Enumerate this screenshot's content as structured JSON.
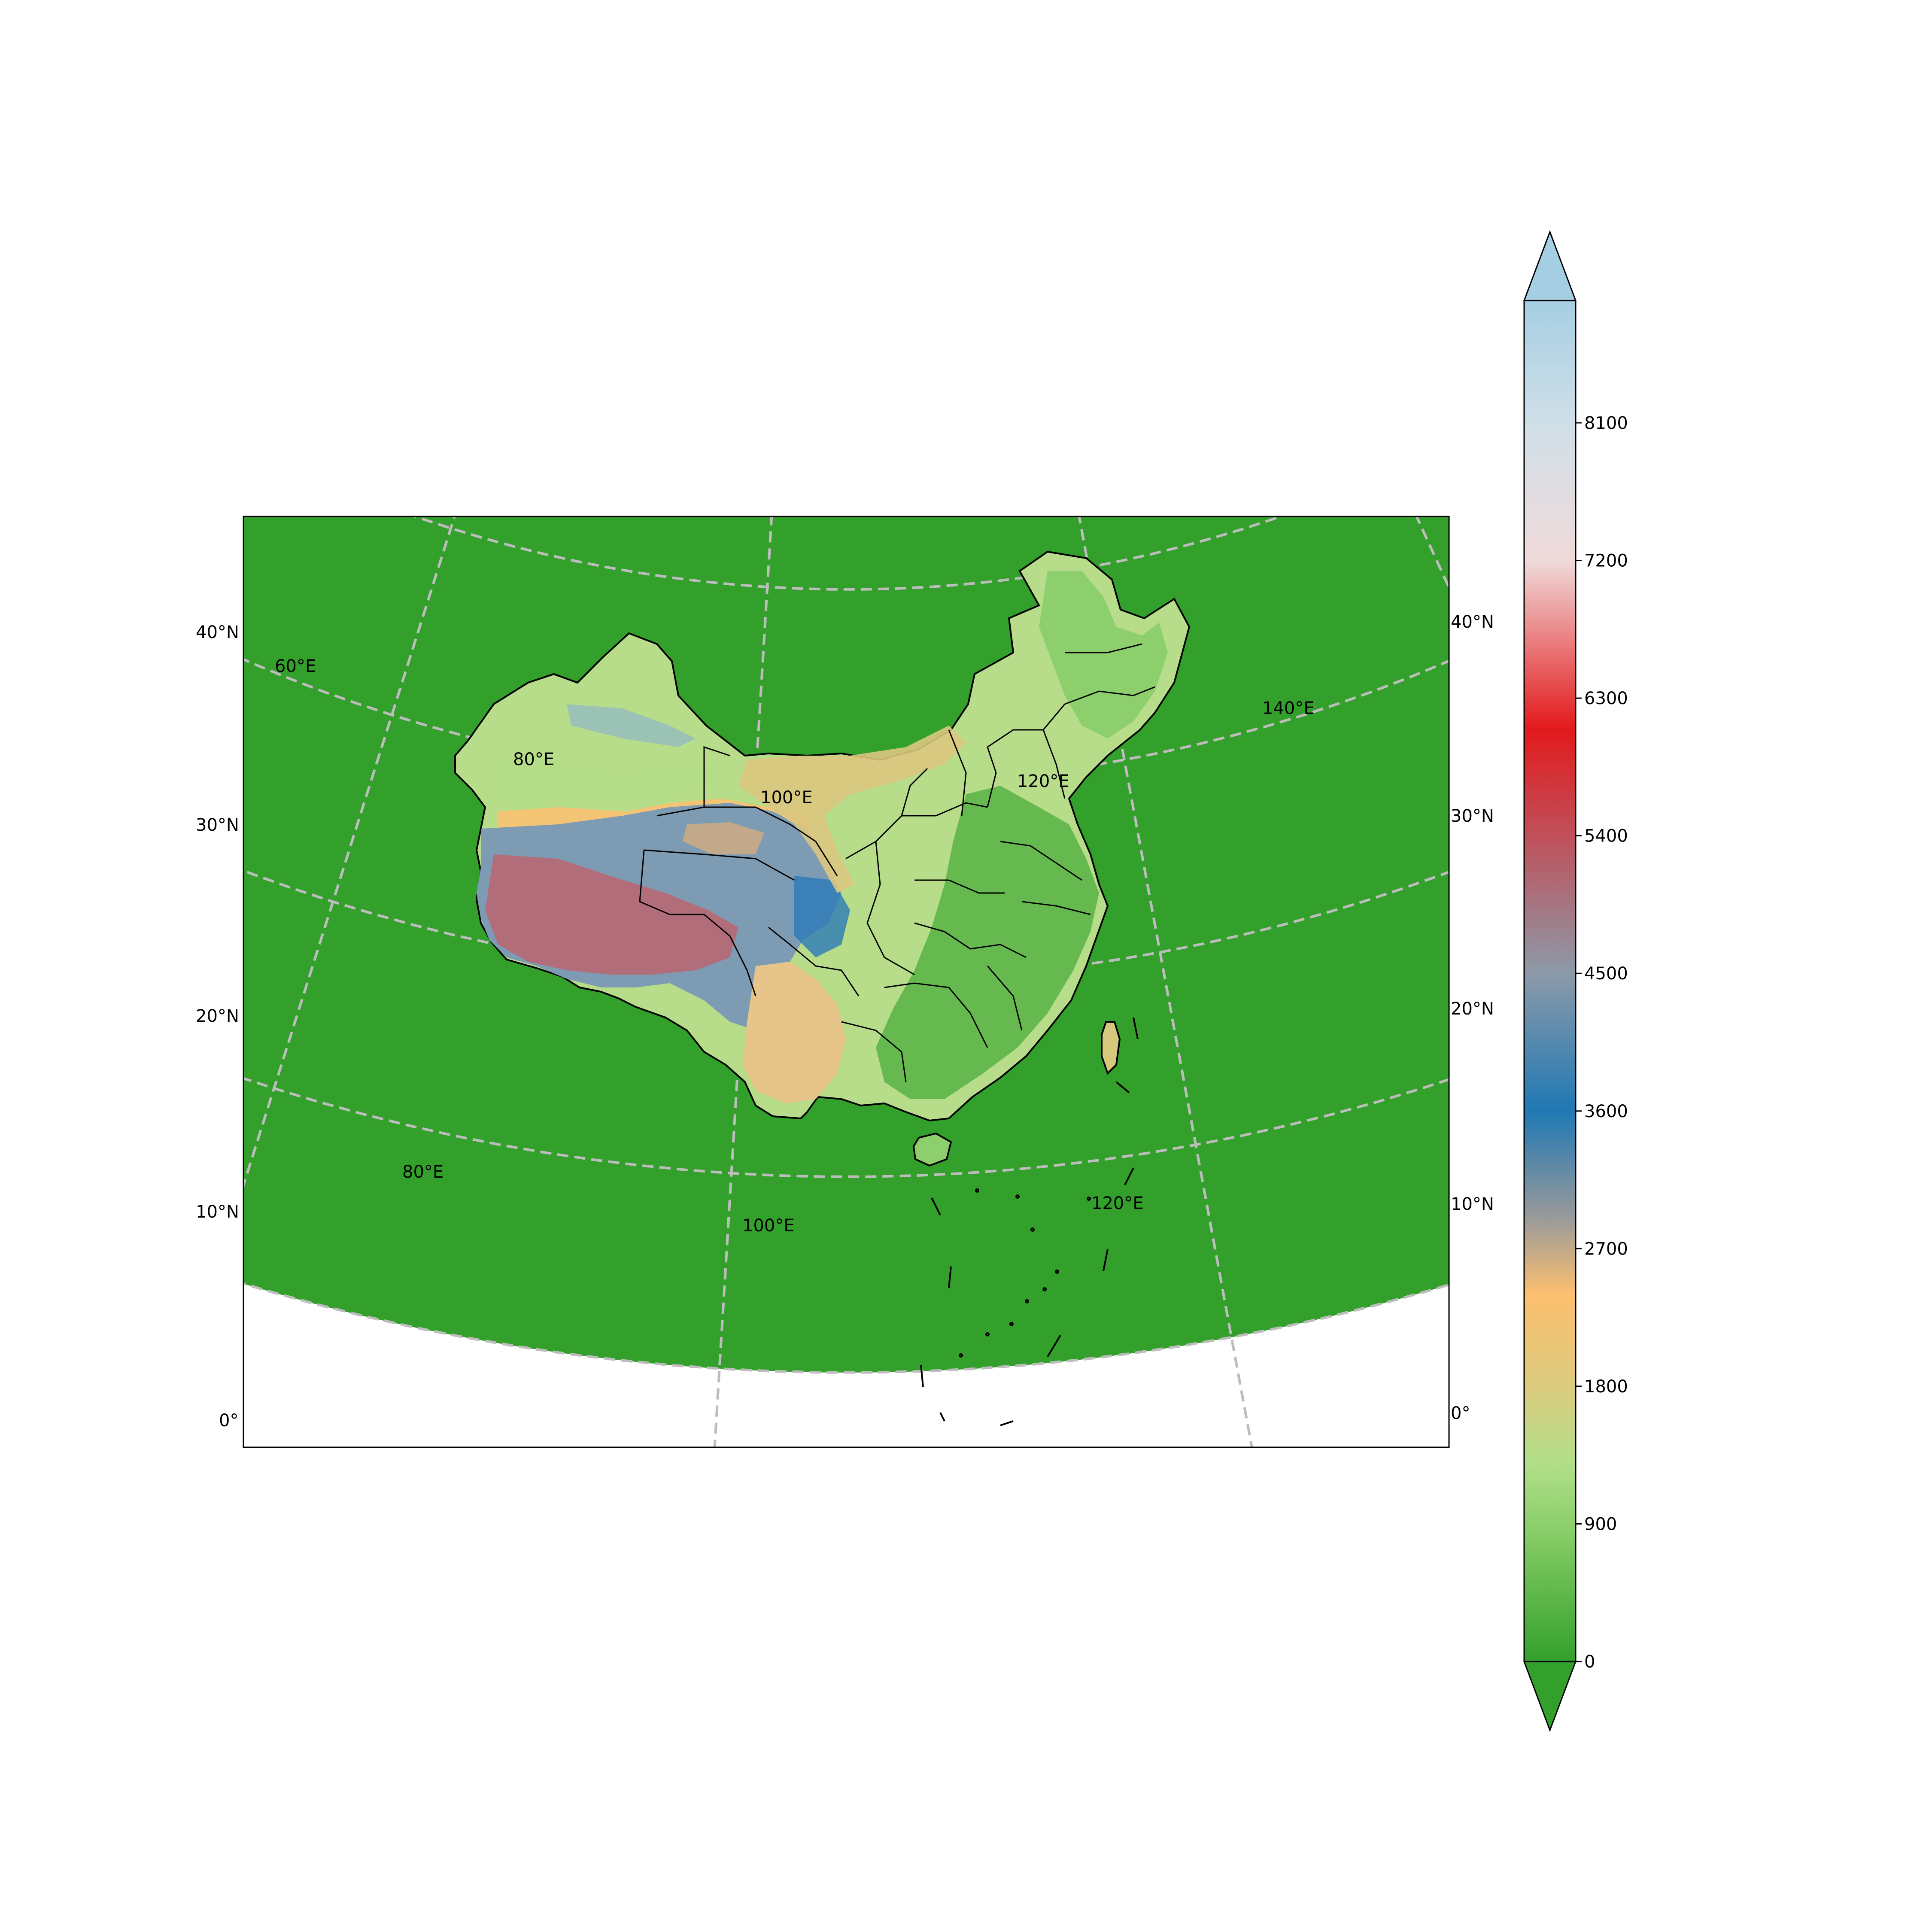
{
  "map": {
    "projection": "Lambert conformal conic",
    "longitude_range_deg": [
      50,
      150
    ],
    "latitude_range_deg": [
      0,
      45
    ],
    "ocean_color": "#33a02c",
    "graticule_color": "#bdbdbd",
    "border_color": "#000000",
    "lat_labels_left": [
      "40°N",
      "30°N",
      "20°N",
      "10°N",
      "0°"
    ],
    "lat_labels_right": [
      "40°N",
      "30°N",
      "20°N",
      "10°N",
      "0°"
    ],
    "lon_labels_top": [
      "60°E",
      "80°E",
      "100°E",
      "120°E",
      "140°E"
    ],
    "lon_labels_bottom": [
      "80°E",
      "100°E",
      "120°E"
    ]
  },
  "colorbar": {
    "ticks": [
      "8100",
      "7200",
      "6300",
      "5400",
      "4500",
      "3600",
      "2700",
      "1800",
      "900",
      "0"
    ],
    "tick_values": [
      8100,
      7200,
      6300,
      5400,
      4500,
      3600,
      2700,
      1800,
      900,
      0
    ],
    "range": [
      0,
      8900
    ],
    "extend": "both",
    "orientation": "vertical",
    "placement": "right",
    "colors": {
      "0": "#33a02c",
      "900": "#8dd06c",
      "1300": "#b2df8a",
      "1800": "#dccb7e",
      "2400": "#fdbf6f",
      "2900": "#9a9a9a",
      "3600": "#1f78b4",
      "4500": "#8c9aa8",
      "5400": "#c0505a",
      "6100": "#e31a1c",
      "7200": "#f0dada",
      "8100": "#cfdfe8",
      "8900": "#a6cee3"
    }
  }
}
